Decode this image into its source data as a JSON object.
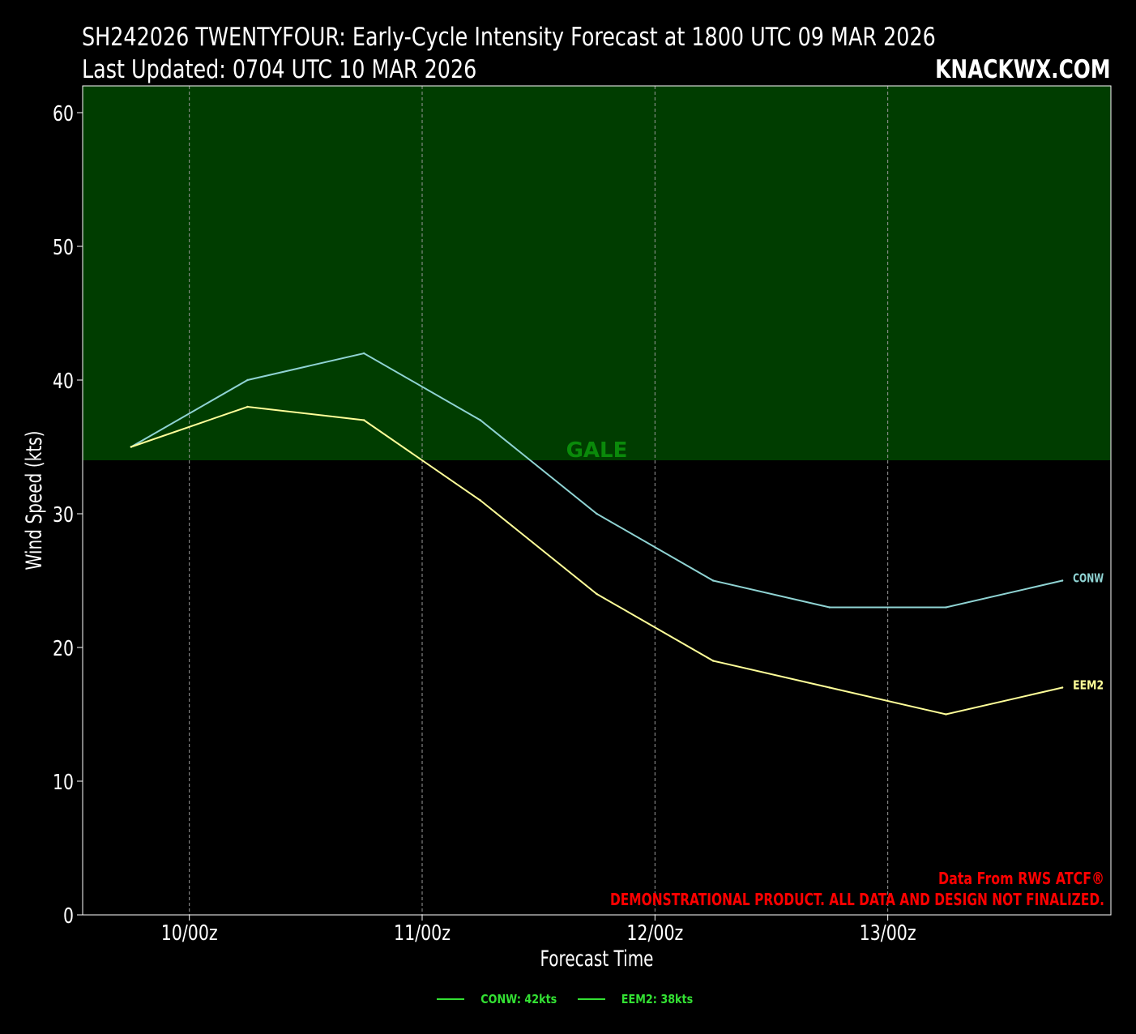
{
  "header": {
    "title": "SH242026 TWENTYFOUR: Early-Cycle Intensity Forecast at 1800 UTC 09 MAR 2026",
    "subtitle": "Last Updated: 0704 UTC 10 MAR 2026",
    "brand": "KNACKWX.COM"
  },
  "chart_data": {
    "type": "line",
    "xlabel": "Forecast Time",
    "ylabel": "Wind Speed (kts)",
    "x": [
      "09/18z",
      "10/06z",
      "10/18z",
      "11/06z",
      "11/18z",
      "12/06z",
      "12/18z",
      "13/06z",
      "13/18z"
    ],
    "xlim": [
      "09/13z",
      "13/23z"
    ],
    "x_ticks": [
      "10/00z",
      "11/00z",
      "12/00z",
      "13/00z"
    ],
    "ylim": [
      0,
      62
    ],
    "y_ticks": [
      0,
      10,
      20,
      30,
      40,
      50,
      60
    ],
    "grid": "vertical dashed",
    "series": [
      {
        "name": "CONW",
        "color": "#8fd3d3",
        "values": [
          35,
          40,
          42,
          37,
          30,
          25,
          23,
          23,
          25
        ]
      },
      {
        "name": "EEM2",
        "color": "#ffff99",
        "values": [
          35,
          38,
          37,
          31,
          24,
          19,
          17,
          15,
          17
        ]
      }
    ],
    "threshold_band": {
      "label": "GALE",
      "from": 34,
      "to": 62,
      "color": "#003d00",
      "label_color": "#0a8a0a"
    },
    "annotations": [
      {
        "text": "Data From RWS ATCF®",
        "color": "#ff0000"
      },
      {
        "text": "DEMONSTRATIONAL PRODUCT. ALL DATA AND DESIGN NOT FINALIZED.",
        "color": "#ff0000"
      }
    ],
    "legend": {
      "placement": "bottom-center",
      "color": "#33e033",
      "entries": [
        "CONW: 42kts",
        "EEM2: 38kts"
      ]
    }
  }
}
